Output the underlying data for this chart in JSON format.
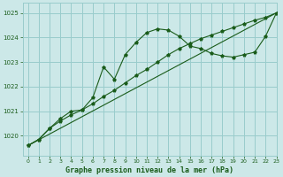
{
  "title": "Graphe pression niveau de la mer (hPa)",
  "bg_color": "#cce8e8",
  "grid_color": "#99cccc",
  "line_color": "#1a5c1a",
  "marker_color": "#1a5c1a",
  "xlim": [
    -0.5,
    23
  ],
  "ylim": [
    1019.2,
    1025.4
  ],
  "yticks": [
    1020,
    1021,
    1022,
    1023,
    1024,
    1025
  ],
  "xticks": [
    0,
    1,
    2,
    3,
    4,
    5,
    6,
    7,
    8,
    9,
    10,
    11,
    12,
    13,
    14,
    15,
    16,
    17,
    18,
    19,
    20,
    21,
    22,
    23
  ],
  "series_linear": {
    "x": [
      0,
      23
    ],
    "y": [
      1019.6,
      1025.0
    ]
  },
  "series_wave": {
    "x": [
      0,
      1,
      2,
      3,
      4,
      5,
      6,
      7,
      8,
      9,
      10,
      11,
      12,
      13,
      14,
      15,
      16,
      17,
      18,
      19,
      20,
      21,
      22,
      23
    ],
    "y": [
      1019.6,
      1019.85,
      1020.3,
      1020.7,
      1021.0,
      1021.05,
      1021.55,
      1022.8,
      1022.3,
      1023.3,
      1023.8,
      1024.2,
      1024.35,
      1024.3,
      1024.05,
      1023.65,
      1023.55,
      1023.35,
      1023.25,
      1023.2,
      1023.3,
      1023.4,
      1024.05,
      1025.0
    ]
  },
  "series_smooth": {
    "x": [
      0,
      1,
      2,
      3,
      4,
      5,
      6,
      7,
      8,
      9,
      10,
      11,
      12,
      13,
      14,
      15,
      16,
      17,
      18,
      19,
      20,
      21,
      22,
      23
    ],
    "y": [
      1019.6,
      1019.85,
      1020.3,
      1020.6,
      1020.85,
      1021.05,
      1021.3,
      1021.6,
      1021.85,
      1022.15,
      1022.45,
      1022.7,
      1023.0,
      1023.3,
      1023.55,
      1023.75,
      1023.95,
      1024.1,
      1024.25,
      1024.4,
      1024.55,
      1024.7,
      1024.82,
      1025.0
    ]
  }
}
